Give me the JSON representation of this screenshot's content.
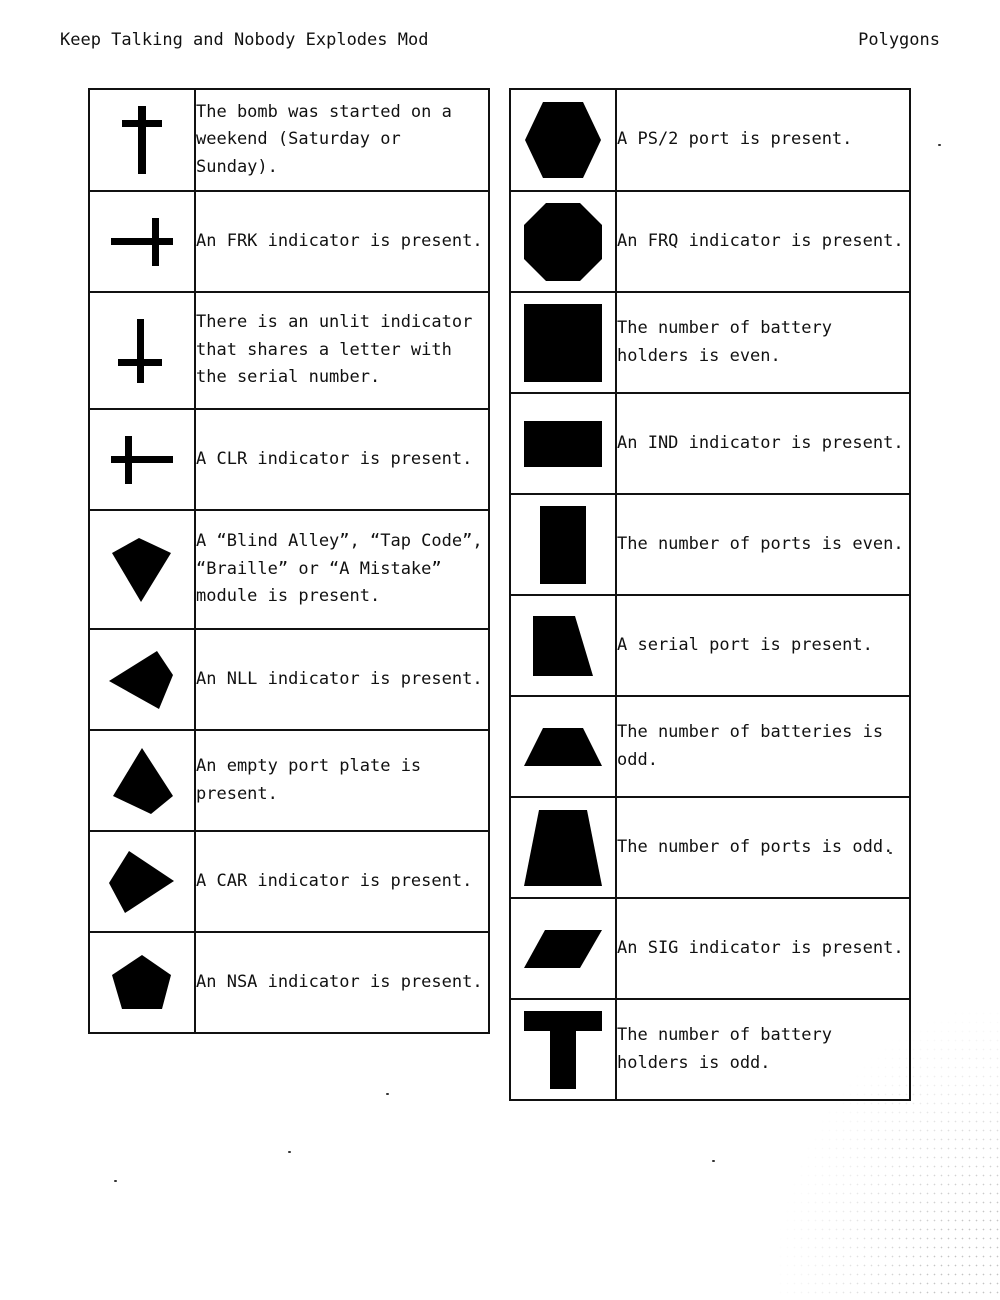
{
  "header": {
    "left": "Keep Talking and Nobody Explodes Mod",
    "right": "Polygons"
  },
  "left_table": [
    {
      "icon": "cross-icon",
      "text": "The bomb was started on a weekend (Saturday or Sunday)."
    },
    {
      "icon": "cross-right-icon",
      "text": "An FRK indicator is present."
    },
    {
      "icon": "cross-down-icon",
      "text": "There is an unlit indicator that shares a letter with the serial number."
    },
    {
      "icon": "cross-left-icon",
      "text": "A CLR indicator is present."
    },
    {
      "icon": "kite-down-icon",
      "text": "A “Blind Alley”, “Tap Code”, “Braille” or “A Mistake” module is present."
    },
    {
      "icon": "kite-left-icon",
      "text": "An NLL indicator is present."
    },
    {
      "icon": "kite-up-icon",
      "text": "An empty port plate is present."
    },
    {
      "icon": "kite-right-icon",
      "text": "A CAR indicator is present."
    },
    {
      "icon": "pentagon-icon",
      "text": "An NSA indicator is present."
    }
  ],
  "right_table": [
    {
      "icon": "hexagon-icon",
      "text": "A PS/2 port is present."
    },
    {
      "icon": "octagon-icon",
      "text": "An FRQ indicator is present."
    },
    {
      "icon": "square-icon",
      "text": "The number of battery holders is even."
    },
    {
      "icon": "wide-rectangle-icon",
      "text": "An IND indicator is present."
    },
    {
      "icon": "tall-rectangle-icon",
      "text": "The number of ports is even."
    },
    {
      "icon": "right-trapezoid-icon",
      "text": "A serial port is present."
    },
    {
      "icon": "flat-trapezoid-icon",
      "text": "The number of batteries is odd."
    },
    {
      "icon": "tall-trapezoid-icon",
      "text": "The number of ports is odd."
    },
    {
      "icon": "parallelogram-icon",
      "text": "An SIG indicator is present."
    },
    {
      "icon": "t-shape-icon",
      "text": "The number of battery holders is odd."
    }
  ]
}
